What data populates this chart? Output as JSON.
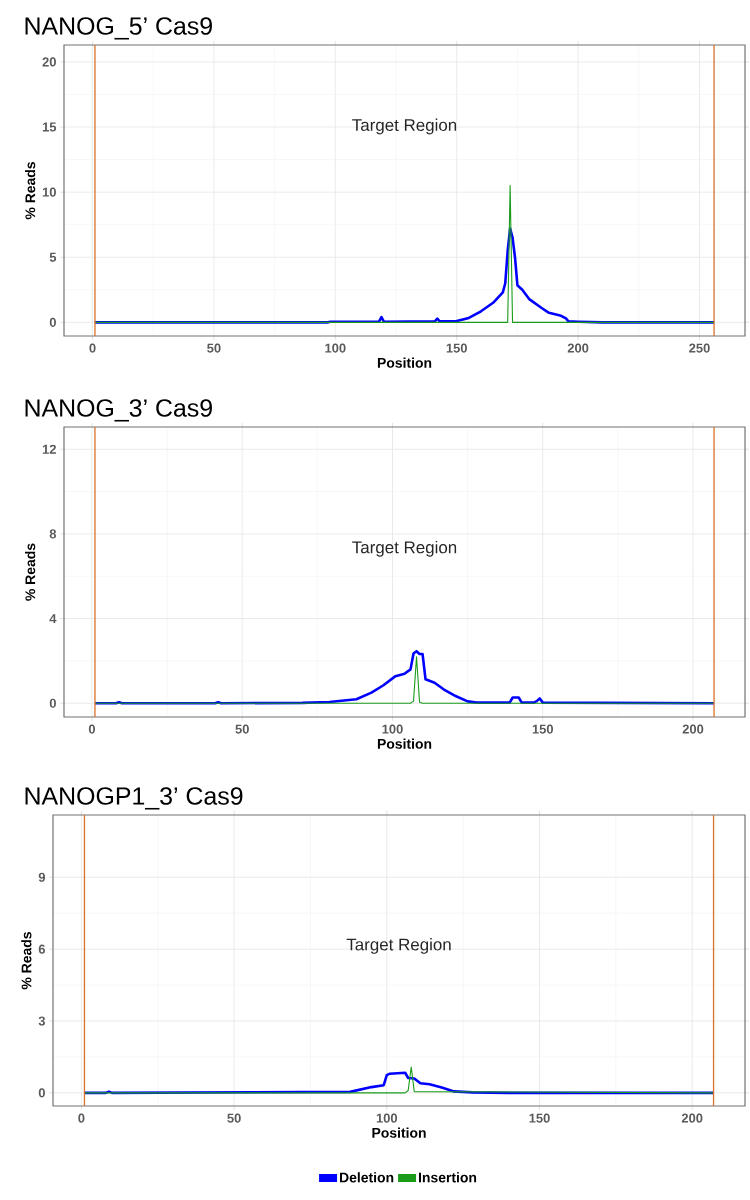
{
  "chart_data": [
    {
      "type": "line",
      "title": "NANOG_5’ Cas9",
      "xlabel": "Position",
      "ylabel": "% Reads",
      "xlim": [
        -11.75,
        268.75
      ],
      "ylim": [
        -1.05,
        21.3
      ],
      "xticks": [
        0,
        50,
        100,
        150,
        200,
        250
      ],
      "yticks": [
        0,
        5,
        10,
        15,
        20
      ],
      "grid": true,
      "marker": "none",
      "line_style": "solid",
      "series": [
        {
          "color": "#0000ff",
          "x": [
            1,
            97,
            98,
            118,
            119,
            120,
            141,
            142,
            143,
            150,
            155,
            160,
            165,
            169,
            170,
            171,
            172,
            173,
            174,
            175,
            177,
            180,
            185,
            188,
            193,
            195,
            196,
            200,
            210,
            256
          ],
          "values": [
            0,
            0,
            0.05,
            0.05,
            0.4,
            0.05,
            0.08,
            0.28,
            0.08,
            0.1,
            0.34,
            0.85,
            1.5,
            2.3,
            3.0,
            5.5,
            7.2,
            6.5,
            5.0,
            2.85,
            2.5,
            1.76,
            1.1,
            0.73,
            0.5,
            0.3,
            0.08,
            0.05,
            0,
            0
          ]
        },
        {
          "color": "#1a9c1a",
          "x": [
            1,
            171,
            172,
            173,
            256
          ],
          "values": [
            0,
            0,
            10.5,
            0,
            0
          ]
        }
      ],
      "ref_lines": [
        {
          "axis": "x",
          "value": 1,
          "color": "#d9712b"
        },
        {
          "axis": "x",
          "value": 256,
          "color": "#d9712b"
        }
      ],
      "annotations": [
        "Target Region"
      ]
    },
    {
      "type": "line",
      "title": "NANOG_3’ Cas9",
      "xlabel": "Position",
      "ylabel": "% Reads",
      "xlim": [
        -9.3,
        217.3
      ],
      "ylim": [
        -0.65,
        13.05
      ],
      "xticks": [
        0,
        50,
        100,
        150,
        200
      ],
      "yticks": [
        0,
        4,
        8,
        12
      ],
      "grid": true,
      "marker": "none",
      "line_style": "solid",
      "series": [
        {
          "color": "#0000ff",
          "x": [
            1,
            8,
            9,
            10,
            41,
            42,
            43,
            70,
            79,
            88,
            93,
            97,
            101,
            104,
            106,
            107,
            108,
            109,
            110,
            111,
            114,
            117,
            121,
            125,
            128,
            139,
            140,
            142,
            143,
            147,
            148,
            149,
            150,
            207
          ],
          "values": [
            0,
            0,
            0.05,
            0,
            0,
            0.05,
            0,
            0.02,
            0.06,
            0.19,
            0.5,
            0.85,
            1.28,
            1.39,
            1.6,
            2.35,
            2.46,
            2.33,
            2.33,
            1.13,
            0.97,
            0.66,
            0.34,
            0.09,
            0.03,
            0.03,
            0.27,
            0.27,
            0.03,
            0.03,
            0.1,
            0.23,
            0.03,
            0
          ]
        },
        {
          "color": "#1a9c1a",
          "x": [
            1,
            106,
            107,
            108,
            109,
            110,
            207
          ],
          "values": [
            0,
            0,
            0.1,
            2.2,
            0.05,
            0,
            0
          ]
        }
      ],
      "ref_lines": [
        {
          "axis": "x",
          "value": 1,
          "color": "#d9712b"
        },
        {
          "axis": "x",
          "value": 207,
          "color": "#d9712b"
        }
      ],
      "annotations": [
        "Target Region"
      ]
    },
    {
      "type": "line",
      "title": "NANOGP1_3’ Cas9",
      "xlabel": "Position",
      "ylabel": "% Reads",
      "xlim": [
        -9.3,
        217.3
      ],
      "ylim": [
        -0.55,
        11.6
      ],
      "xticks": [
        0,
        50,
        100,
        150,
        200
      ],
      "yticks": [
        0,
        3,
        6,
        9
      ],
      "grid": true,
      "marker": "none",
      "line_style": "solid",
      "legend": "bottom",
      "series": [
        {
          "name": "Deletion",
          "color": "#0000ff",
          "x": [
            1,
            8,
            9,
            10,
            88,
            95,
            99,
            100,
            101,
            106,
            107,
            109,
            111,
            114,
            118,
            122,
            128,
            140,
            207
          ],
          "values": [
            0,
            0,
            0.05,
            0,
            0.04,
            0.24,
            0.32,
            0.74,
            0.8,
            0.84,
            0.62,
            0.6,
            0.4,
            0.36,
            0.22,
            0.06,
            0.02,
            0,
            0
          ]
        },
        {
          "name": "Insertion",
          "color": "#1a9c1a",
          "x": [
            1,
            106,
            107,
            108,
            109,
            207
          ],
          "values": [
            0,
            0,
            0.1,
            1.08,
            0.05,
            0
          ]
        }
      ],
      "ref_lines": [
        {
          "axis": "x",
          "value": 1,
          "color": "#d9712b"
        },
        {
          "axis": "x",
          "value": 207,
          "color": "#d9712b"
        }
      ],
      "annotations": [
        "Target Region"
      ]
    }
  ]
}
